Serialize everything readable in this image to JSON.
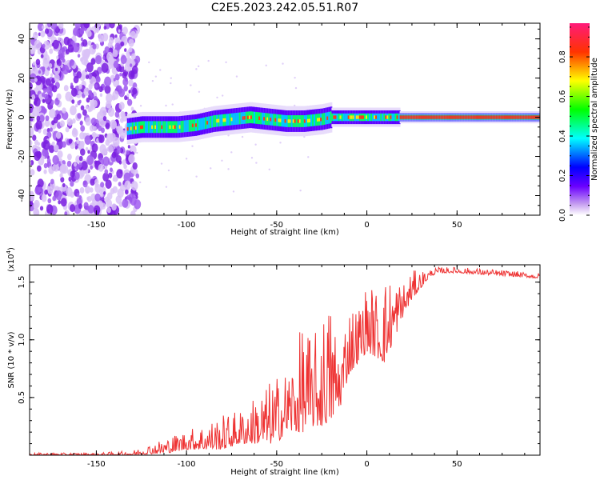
{
  "title": "C2E5.2023.242.05.51.R07",
  "chart_data": [
    {
      "type": "heatmap",
      "xlabel": "Height of straight line (km)",
      "ylabel": "Frequency (Hz)",
      "xlim": [
        -187,
        96
      ],
      "ylim": [
        -50,
        48
      ],
      "xticks": [
        -150,
        -100,
        -50,
        0,
        50
      ],
      "yticks": [
        -40,
        -20,
        0,
        20,
        40
      ],
      "noise_region_x": [
        -187,
        -133
      ],
      "signal_band": {
        "x": [
          -133,
          -125,
          -115,
          -105,
          -95,
          -85,
          -75,
          -65,
          -55,
          -45,
          -35,
          -25,
          -20,
          -10,
          0,
          10,
          20,
          40,
          60,
          80,
          96
        ],
        "center_hz": [
          -6,
          -5,
          -5,
          -5,
          -4,
          -2,
          -1,
          0,
          -1,
          -2,
          -2,
          -1,
          0,
          0,
          0,
          0,
          0,
          0,
          0,
          0,
          0
        ]
      },
      "colorbar": {
        "label": "Normalized spectral amplitude",
        "range": [
          0.0,
          0.97
        ],
        "ticks": [
          "0.0",
          "0.2",
          "0.4",
          "0.6",
          "0.8"
        ],
        "colors": [
          "#ffffff",
          "#8a2be2",
          "#0000ff",
          "#00ffff",
          "#00ff00",
          "#ffff00",
          "#ff0000",
          "#ff1493"
        ]
      }
    },
    {
      "type": "line",
      "xlabel": "Height of straight line (km)",
      "ylabel": "SNR (10 * v/v)",
      "y_scale_note": "(x10",
      "y_scale_exp": "4",
      "y_scale_close": ")",
      "xlim": [
        -187,
        96
      ],
      "ylim": [
        0,
        1.65
      ],
      "xticks": [
        -150,
        -100,
        -50,
        0,
        50
      ],
      "yticks": [
        "0.5",
        "1.0",
        "1.5"
      ],
      "color": "#ee3333",
      "series": [
        {
          "x": [
            -187,
            -150,
            -130,
            -120,
            -110,
            -100,
            -90,
            -80,
            -70,
            -60,
            -50,
            -45,
            -40,
            -35,
            -30,
            -25,
            -20,
            -15,
            -10,
            -5,
            0,
            5,
            10,
            15,
            20,
            25,
            30,
            35,
            40,
            50,
            60,
            70,
            80,
            90,
            96
          ],
          "envelope_min": [
            0.0,
            0.0,
            0.0,
            0.01,
            0.02,
            0.05,
            0.05,
            0.05,
            0.1,
            0.1,
            0.1,
            0.2,
            0.2,
            0.2,
            0.25,
            0.25,
            0.3,
            0.4,
            0.7,
            0.8,
            0.9,
            0.85,
            0.8,
            1.0,
            1.2,
            1.35,
            1.45,
            1.55,
            1.58,
            1.58,
            1.57,
            1.56,
            1.55,
            1.54,
            1.53
          ],
          "envelope_max": [
            0.02,
            0.02,
            0.04,
            0.1,
            0.16,
            0.22,
            0.28,
            0.35,
            0.4,
            0.55,
            0.7,
            0.75,
            0.9,
            1.2,
            1.0,
            1.25,
            1.35,
            1.0,
            1.35,
            1.3,
            1.5,
            1.45,
            1.55,
            1.58,
            1.5,
            1.6,
            1.6,
            1.61,
            1.63,
            1.63,
            1.62,
            1.61,
            1.6,
            1.58,
            1.58
          ]
        }
      ]
    }
  ]
}
